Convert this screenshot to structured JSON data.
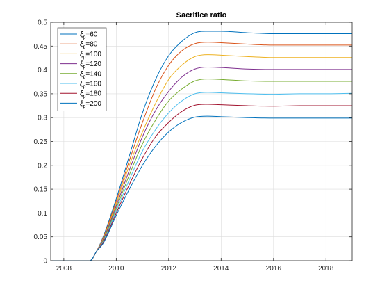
{
  "chart_data": {
    "type": "line",
    "title": "Sacrifice ratio",
    "xlabel": "",
    "ylabel": "",
    "xlim": [
      2007.5,
      2019
    ],
    "ylim": [
      0,
      0.5
    ],
    "xticks": [
      2008,
      2010,
      2012,
      2014,
      2016,
      2018
    ],
    "yticks": [
      0,
      0.05,
      0.1,
      0.15,
      0.2,
      0.25,
      0.3,
      0.35,
      0.4,
      0.45,
      0.5
    ],
    "ytick_labels": [
      "0",
      "0.05",
      "0.1",
      "0.15",
      "0.2",
      "0.25",
      "0.3",
      "0.35",
      "0.4",
      "0.45",
      "0.5"
    ],
    "grid": true,
    "legend_position": "top-left",
    "series": [
      {
        "name": "ξp=60",
        "label_main": "ξ",
        "label_sub": "p",
        "label_rest": "=60",
        "color": "#0072BD",
        "x": [
          2007.5,
          2009,
          2009.25,
          2009.5,
          2010,
          2010.5,
          2011,
          2011.5,
          2012,
          2012.5,
          2013,
          2013.5,
          2014,
          2015,
          2016,
          2017,
          2018,
          2019
        ],
        "y": [
          0,
          0,
          0.02,
          0.05,
          0.13,
          0.22,
          0.31,
          0.38,
          0.43,
          0.46,
          0.478,
          0.481,
          0.481,
          0.478,
          0.476,
          0.476,
          0.476,
          0.476
        ]
      },
      {
        "name": "ξp=80",
        "label_main": "ξ",
        "label_sub": "p",
        "label_rest": "=80",
        "color": "#D95319",
        "x": [
          2007.5,
          2009,
          2009.25,
          2009.5,
          2010,
          2010.5,
          2011,
          2011.5,
          2012,
          2012.5,
          2013,
          2013.5,
          2014,
          2015,
          2016,
          2017,
          2018,
          2019
        ],
        "y": [
          0,
          0,
          0.02,
          0.048,
          0.125,
          0.21,
          0.29,
          0.36,
          0.41,
          0.44,
          0.455,
          0.458,
          0.457,
          0.454,
          0.452,
          0.452,
          0.452,
          0.452
        ]
      },
      {
        "name": "ξp=100",
        "label_main": "ξ",
        "label_sub": "p",
        "label_rest": "=100",
        "color": "#EDB120",
        "x": [
          2007.5,
          2009,
          2009.25,
          2009.5,
          2010,
          2010.5,
          2011,
          2011.5,
          2012,
          2012.5,
          2013,
          2013.5,
          2014,
          2015,
          2016,
          2017,
          2018,
          2019
        ],
        "y": [
          0,
          0,
          0.02,
          0.046,
          0.12,
          0.2,
          0.27,
          0.33,
          0.38,
          0.41,
          0.428,
          0.432,
          0.431,
          0.428,
          0.426,
          0.426,
          0.426,
          0.426
        ]
      },
      {
        "name": "ξp=120",
        "label_main": "ξ",
        "label_sub": "p",
        "label_rest": "=120",
        "color": "#7E2F8E",
        "x": [
          2007.5,
          2009,
          2009.25,
          2009.5,
          2010,
          2010.5,
          2011,
          2011.5,
          2012,
          2012.5,
          2013,
          2013.5,
          2014,
          2015,
          2016,
          2017,
          2018,
          2019
        ],
        "y": [
          0,
          0,
          0.02,
          0.044,
          0.115,
          0.19,
          0.26,
          0.315,
          0.355,
          0.385,
          0.402,
          0.406,
          0.405,
          0.402,
          0.401,
          0.401,
          0.401,
          0.401
        ]
      },
      {
        "name": "ξp=140",
        "label_main": "ξ",
        "label_sub": "p",
        "label_rest": "=140",
        "color": "#77AC30",
        "x": [
          2007.5,
          2009,
          2009.25,
          2009.5,
          2010,
          2010.5,
          2011,
          2011.5,
          2012,
          2012.5,
          2013,
          2013.5,
          2014,
          2015,
          2016,
          2017,
          2018,
          2019
        ],
        "y": [
          0,
          0,
          0.02,
          0.042,
          0.11,
          0.18,
          0.245,
          0.295,
          0.335,
          0.36,
          0.377,
          0.381,
          0.38,
          0.377,
          0.376,
          0.376,
          0.376,
          0.376
        ]
      },
      {
        "name": "ξp=160",
        "label_main": "ξ",
        "label_sub": "p",
        "label_rest": "=160",
        "color": "#4DBEEE",
        "x": [
          2007.5,
          2009,
          2009.25,
          2009.5,
          2010,
          2010.5,
          2011,
          2011.5,
          2012,
          2012.5,
          2013,
          2013.5,
          2014,
          2015,
          2016,
          2017,
          2018,
          2019
        ],
        "y": [
          0,
          0,
          0.02,
          0.04,
          0.105,
          0.17,
          0.23,
          0.275,
          0.31,
          0.335,
          0.35,
          0.353,
          0.352,
          0.35,
          0.349,
          0.35,
          0.35,
          0.351
        ]
      },
      {
        "name": "ξp=180",
        "label_main": "ξ",
        "label_sub": "p",
        "label_rest": "=180",
        "color": "#A2142F",
        "x": [
          2007.5,
          2009,
          2009.25,
          2009.5,
          2010,
          2010.5,
          2011,
          2011.5,
          2012,
          2012.5,
          2013,
          2013.5,
          2014,
          2015,
          2016,
          2017,
          2018,
          2019
        ],
        "y": [
          0,
          0,
          0.02,
          0.038,
          0.1,
          0.16,
          0.215,
          0.26,
          0.29,
          0.313,
          0.326,
          0.328,
          0.327,
          0.325,
          0.324,
          0.325,
          0.325,
          0.325
        ]
      },
      {
        "name": "ξp=200",
        "label_main": "ξ",
        "label_sub": "p",
        "label_rest": "=200",
        "color": "#0072BD",
        "x": [
          2007.5,
          2009,
          2009.25,
          2009.5,
          2010,
          2010.5,
          2011,
          2011.5,
          2012,
          2012.5,
          2013,
          2013.5,
          2014,
          2015,
          2016,
          2017,
          2018,
          2019
        ],
        "y": [
          0,
          0,
          0.02,
          0.036,
          0.095,
          0.15,
          0.2,
          0.24,
          0.27,
          0.29,
          0.301,
          0.303,
          0.302,
          0.3,
          0.299,
          0.299,
          0.299,
          0.299
        ]
      }
    ]
  }
}
